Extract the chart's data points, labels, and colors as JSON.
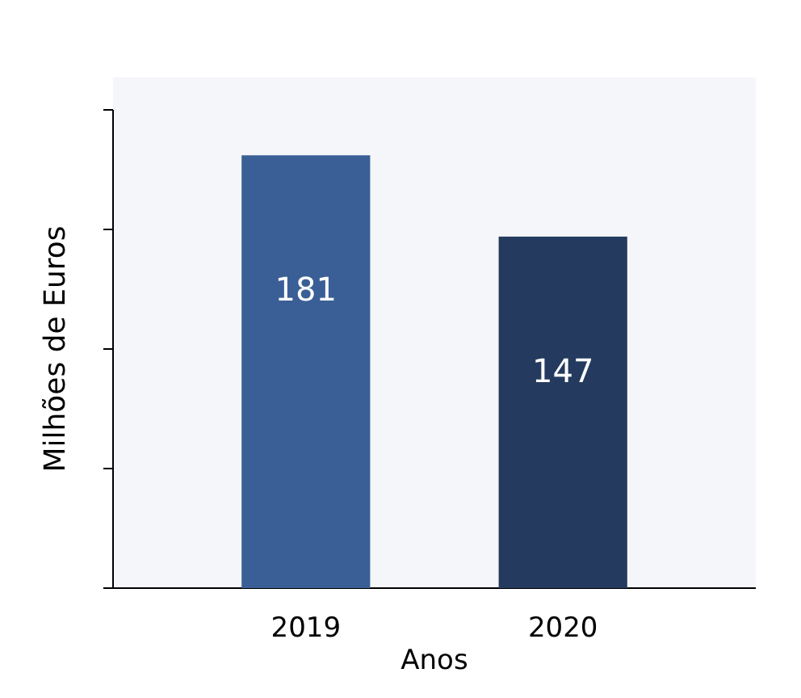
{
  "chart_data": {
    "type": "bar",
    "xlabel": "Anos",
    "ylabel": "Milhões de Euros",
    "categories": [
      "2019",
      "2020"
    ],
    "values": [
      181,
      147
    ],
    "colors": [
      "#3a5f96",
      "#243a5e"
    ],
    "data_labels": true,
    "ylim": [
      0,
      200
    ],
    "yticks": [
      {
        "value": 0,
        "label": null
      },
      {
        "value": 50,
        "label": null
      },
      {
        "value": 100,
        "label": null
      },
      {
        "value": 150,
        "label": null
      },
      {
        "value": 200,
        "label": null
      }
    ]
  }
}
